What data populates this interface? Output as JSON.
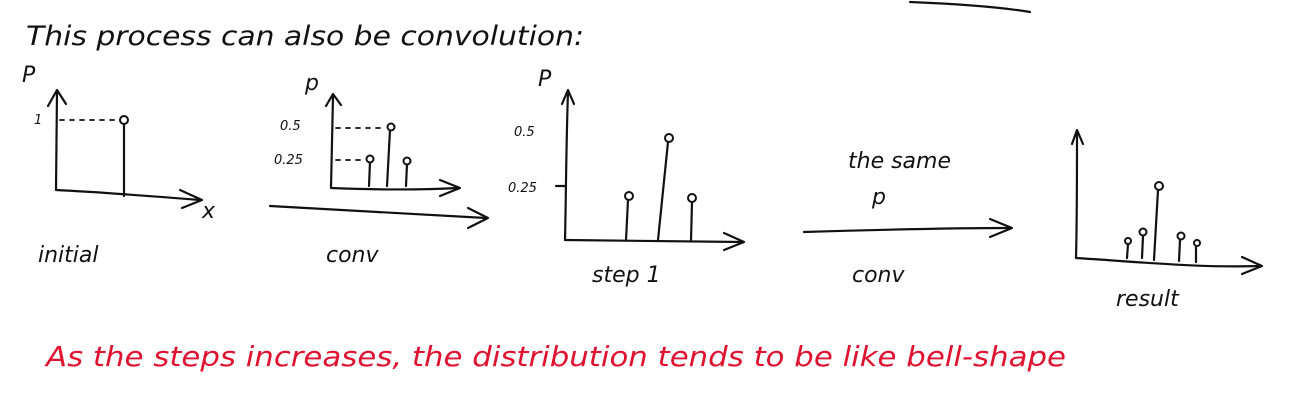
{
  "heading": "This process can also be convolution:",
  "panels": {
    "initial": {
      "y_label": "P",
      "x_label": "x",
      "tick_1": "1",
      "caption": "initial"
    },
    "conv_kernel": {
      "y_label": "p",
      "tick_05": "0.5",
      "tick_025": "0.25"
    },
    "arrow_1": {
      "caption": "conv"
    },
    "step1": {
      "y_label": "P",
      "tick_05": "0.5",
      "tick_025": "0.25",
      "caption": "step 1"
    },
    "arrow_2": {
      "label_top": "the same",
      "label_mid": "p",
      "caption": "conv"
    },
    "result": {
      "caption": "result"
    }
  },
  "conclusion": "As the steps increases, the distribution tends to be like bell-shape",
  "colors": {
    "ink": "#111111",
    "note": "#e0122f"
  }
}
